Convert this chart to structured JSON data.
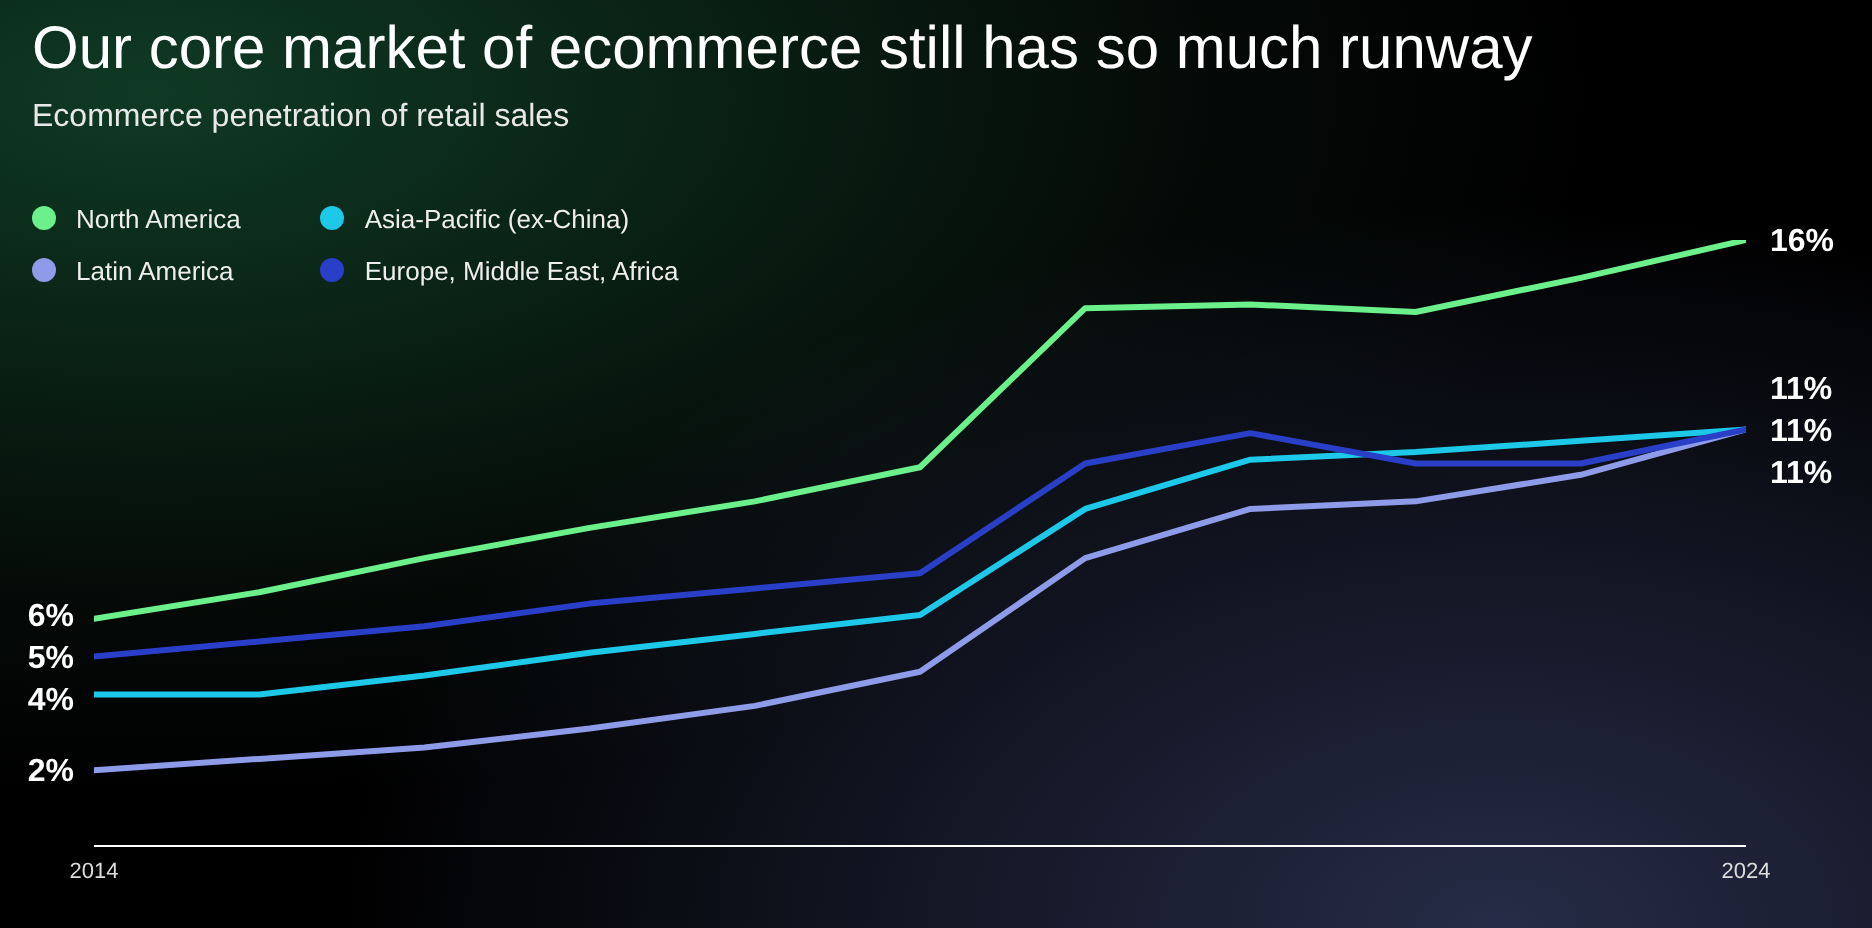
{
  "chart_data": {
    "type": "line",
    "title": "Our core market of ecommerce still has so much runway",
    "subtitle": "Ecommerce penetration of retail sales",
    "x": [
      2014,
      2015,
      2016,
      2017,
      2018,
      2019,
      2020,
      2021,
      2022,
      2023,
      2024
    ],
    "xlim": [
      2014,
      2024
    ],
    "xticks": [
      2014,
      2024
    ],
    "tick_labels": "x",
    "legend": "top left",
    "marker": "none",
    "line_style": "solid",
    "series": [
      {
        "name": "North America",
        "color": "#6cf08c",
        "values": [
          6,
          6.7,
          7.6,
          8.4,
          9.1,
          10,
          14.2,
          14.3,
          14.1,
          15,
          16
        ],
        "value_labels": [
          "6%",
          null,
          null,
          null,
          null,
          null,
          null,
          null,
          null,
          null,
          "16%"
        ]
      },
      {
        "name": "Latin America",
        "color": "#8e9be8",
        "values": [
          2,
          2.3,
          2.6,
          3.1,
          3.7,
          4.6,
          7.6,
          8.9,
          9.1,
          9.8,
          11
        ],
        "value_labels": [
          "2%",
          null,
          null,
          null,
          null,
          null,
          null,
          null,
          null,
          null,
          "11%"
        ]
      },
      {
        "name": "Asia-Pacific (ex-China)",
        "color": "#1ec8e8",
        "values": [
          4,
          4,
          4.5,
          5.1,
          5.6,
          6.1,
          8.9,
          10.2,
          10.4,
          10.7,
          11
        ],
        "value_labels": [
          "4%",
          null,
          null,
          null,
          null,
          null,
          null,
          null,
          null,
          null,
          "11%"
        ]
      },
      {
        "name": "Europe, Middle East, Africa",
        "color": "#2a3fc8",
        "values": [
          5,
          5.4,
          5.8,
          6.4,
          6.8,
          7.2,
          10.1,
          10.9,
          10.1,
          10.1,
          11
        ],
        "value_labels": [
          "5%",
          null,
          null,
          null,
          null,
          null,
          null,
          null,
          null,
          null,
          "11%"
        ]
      }
    ]
  }
}
